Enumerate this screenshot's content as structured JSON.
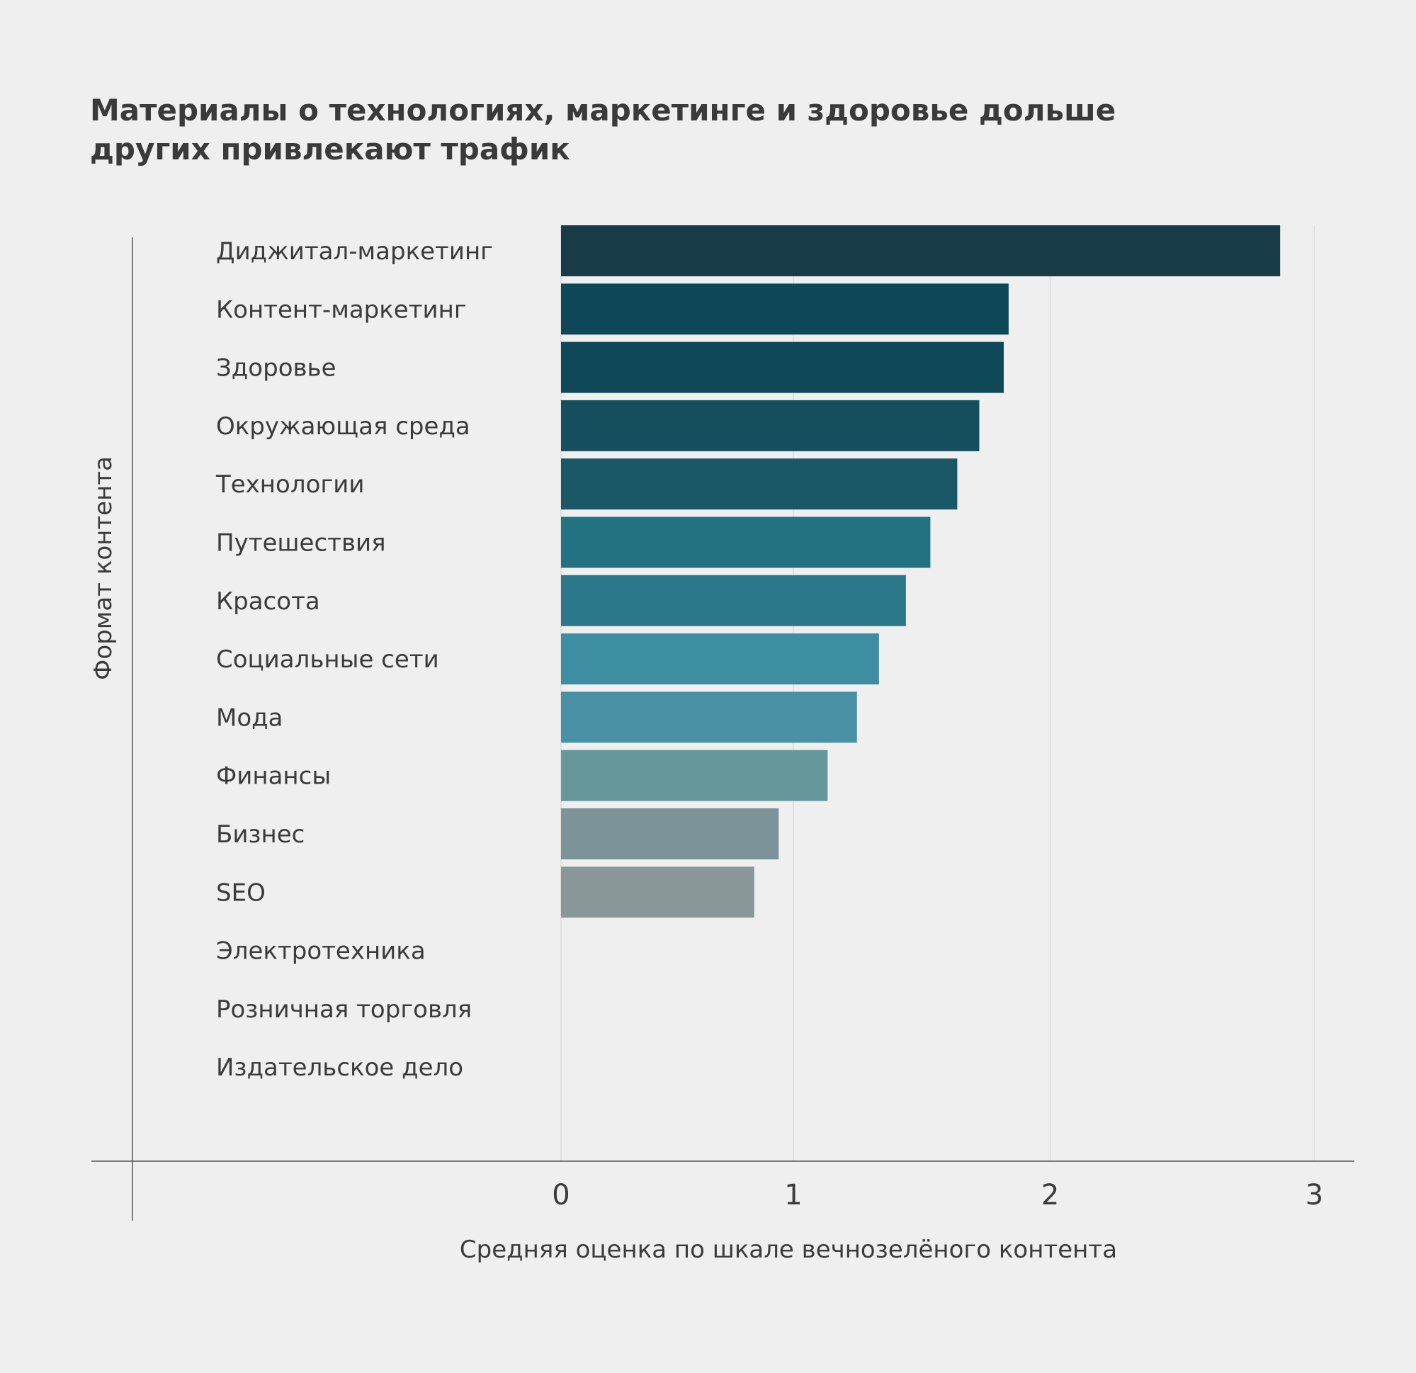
{
  "chart_data": {
    "type": "bar",
    "orientation": "horizontal",
    "title_lines": [
      "Материалы о технологиях, маркетинге и здоровье дольше",
      "других привлекают трафик"
    ],
    "xlabel": "Средняя оценка по шкале вечнозелёного контента",
    "ylabel": "Формат контента",
    "xlim": [
      0,
      3.06
    ],
    "xticks": [
      {
        "value": 0,
        "label": "0"
      },
      {
        "value": 0.95,
        "label": "1"
      },
      {
        "value": 2.0,
        "label": "2"
      },
      {
        "value": 3.08,
        "label": "3"
      }
    ],
    "grid": true,
    "categories": [
      "Диджитал-маркетинг",
      "Контент-маркетинг",
      "Здоровье",
      "Окружающая среда",
      "Технологии",
      "Путешествия",
      "Красота",
      "Социальные сети",
      "Мода",
      "Финансы",
      "Бизнес",
      "SEO",
      "Электротехника",
      "Розничная торговля",
      "Издательское дело"
    ],
    "values": [
      2.94,
      1.83,
      1.81,
      1.71,
      1.62,
      1.51,
      1.41,
      1.3,
      1.21,
      1.09,
      0.89,
      0.79,
      0,
      0,
      0
    ],
    "colors": [
      "#173b47",
      "#0e4858",
      "#0f4857",
      "#154f5e",
      "#1a5868",
      "#237282",
      "#2b788b",
      "#3d8ea2",
      "#4a90a4",
      "#66979b",
      "#7c9399",
      "#899799",
      "#cccccc",
      "#cccccc",
      "#cccccc"
    ]
  }
}
